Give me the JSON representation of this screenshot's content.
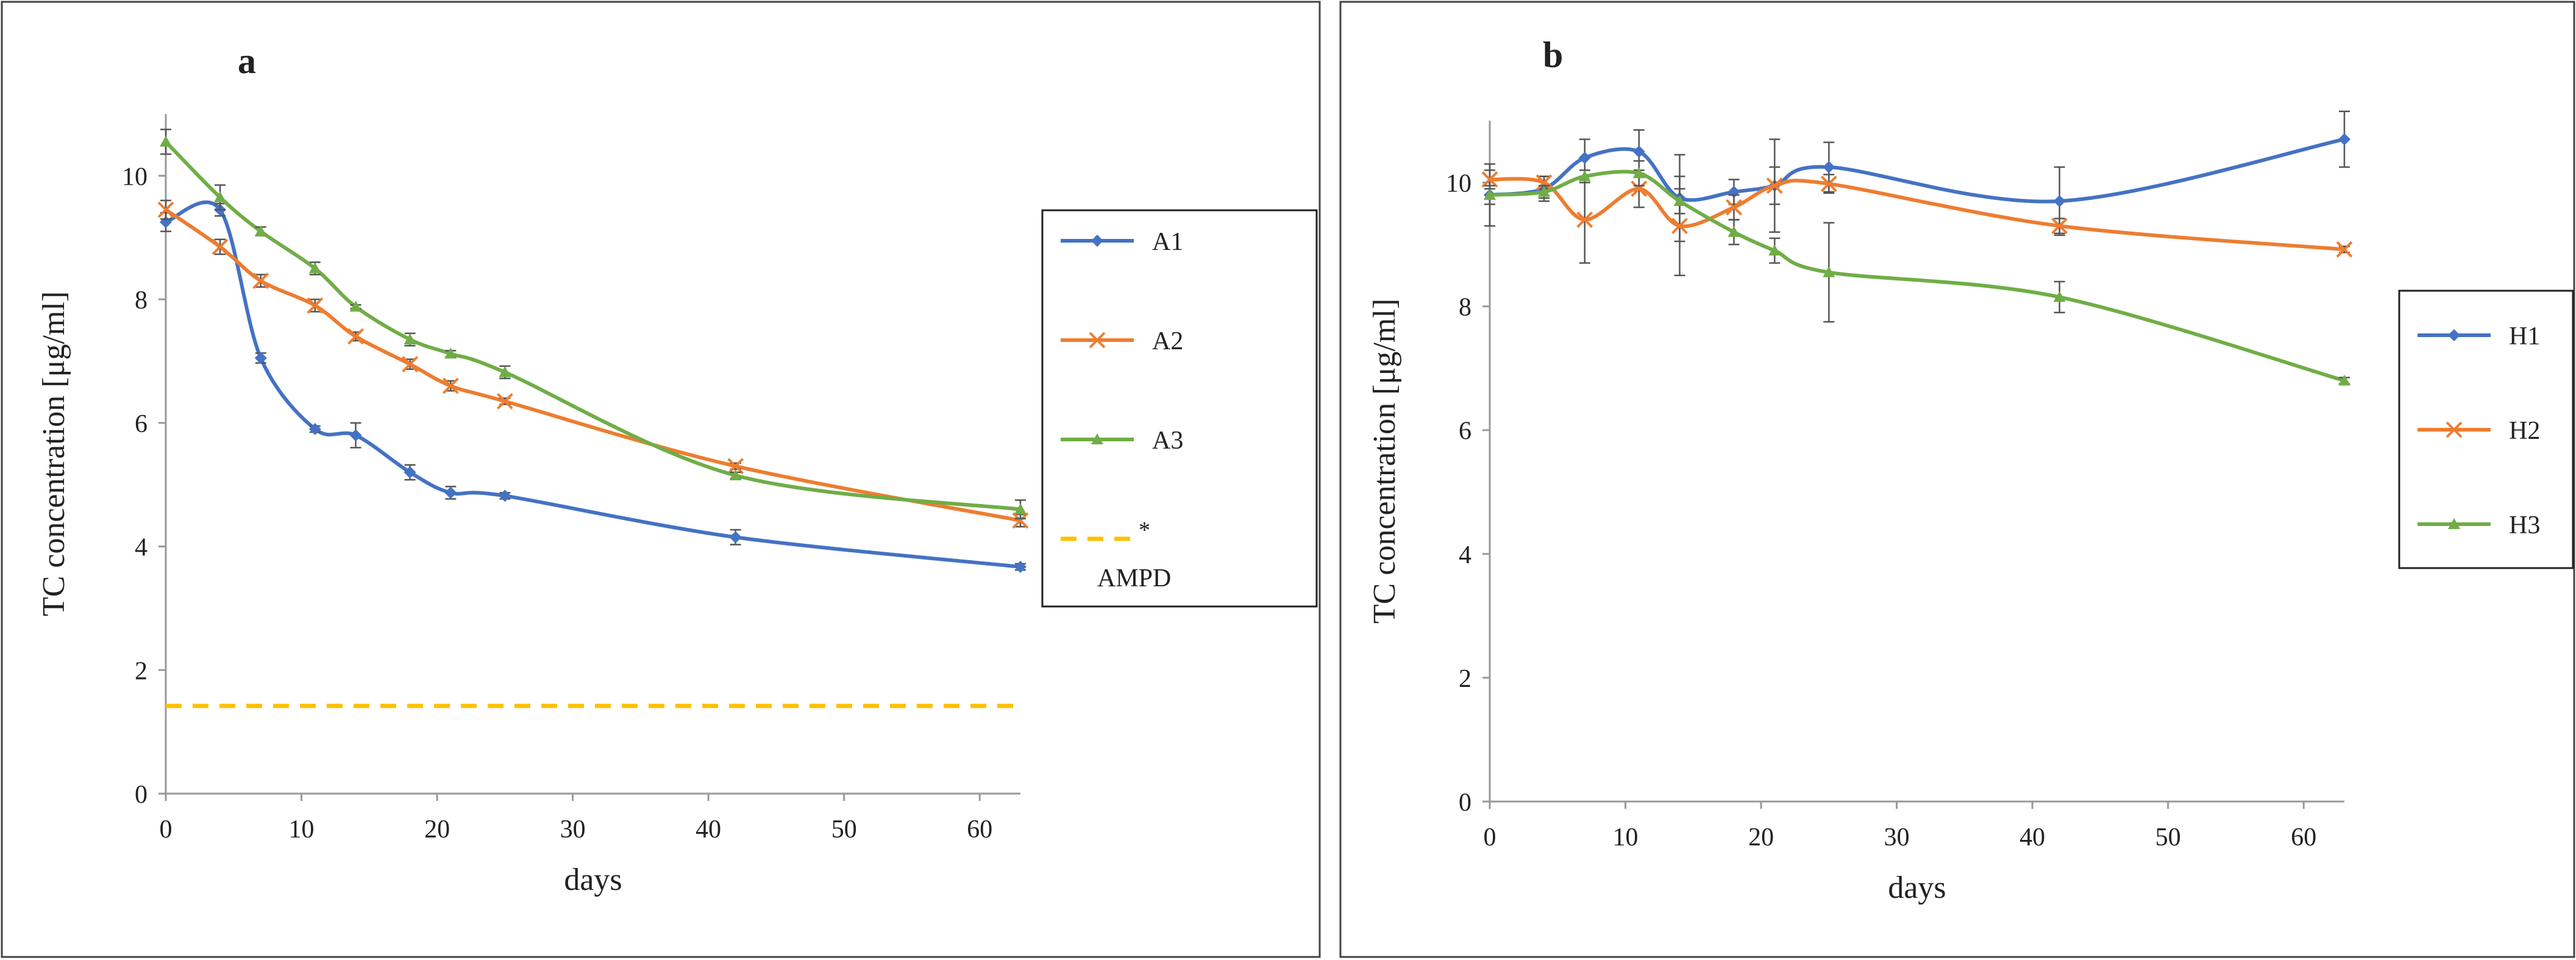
{
  "chart_data": [
    {
      "type": "line",
      "panel_label": "a",
      "title": "",
      "xlabel": "days",
      "ylabel": "TC concentration [μg/ml]",
      "xlim": [
        0,
        63
      ],
      "ylim": [
        0,
        11
      ],
      "xticks": [
        0,
        10,
        20,
        30,
        40,
        50,
        60
      ],
      "yticks": [
        0,
        2,
        4,
        6,
        8,
        10
      ],
      "grid": false,
      "legend": "right",
      "series": [
        {
          "name": "A1",
          "color": "#4472C4",
          "marker": "diamond",
          "x": [
            0,
            4,
            7,
            11,
            14,
            18,
            21,
            25,
            42,
            63
          ],
          "y": [
            9.25,
            9.45,
            7.05,
            5.9,
            5.8,
            5.2,
            4.87,
            4.82,
            4.15,
            3.67
          ],
          "err": [
            0.15,
            0.1,
            0.08,
            0.05,
            0.2,
            0.12,
            0.1,
            0.05,
            0.12,
            0.05
          ]
        },
        {
          "name": "A2",
          "color": "#ED7D31",
          "marker": "x",
          "x": [
            0,
            4,
            7,
            11,
            14,
            18,
            21,
            25,
            42,
            63
          ],
          "y": [
            9.45,
            8.85,
            8.3,
            7.9,
            7.4,
            6.95,
            6.6,
            6.35,
            5.3,
            4.42
          ],
          "err": [
            0.15,
            0.12,
            0.1,
            0.1,
            0.07,
            0.08,
            0.08,
            0.05,
            0.05,
            0.1
          ]
        },
        {
          "name": "A3",
          "color": "#70AD47",
          "marker": "triangle",
          "x": [
            0,
            4,
            7,
            11,
            14,
            18,
            21,
            25,
            42,
            63
          ],
          "y": [
            10.55,
            9.65,
            9.1,
            8.5,
            7.88,
            7.35,
            7.12,
            6.82,
            5.15,
            4.6
          ],
          "err": [
            0.2,
            0.2,
            0.07,
            0.1,
            0.03,
            0.1,
            0.05,
            0.1,
            0.05,
            0.15
          ]
        },
        {
          "name": "* AMPD",
          "color": "#FFC000",
          "dashed": true,
          "x": [
            0,
            63
          ],
          "y": [
            1.42,
            1.42
          ]
        }
      ]
    },
    {
      "type": "line",
      "panel_label": "b",
      "title": "",
      "xlabel": "days",
      "ylabel": "TC concentration [μg/ml]",
      "xlim": [
        0,
        63
      ],
      "ylim": [
        0,
        11
      ],
      "xticks": [
        0,
        10,
        20,
        30,
        40,
        50,
        60
      ],
      "yticks": [
        0,
        2,
        4,
        6,
        8,
        10
      ],
      "grid": false,
      "legend": "right",
      "series": [
        {
          "name": "H1",
          "color": "#4472C4",
          "marker": "diamond",
          "x": [
            0,
            4,
            7,
            11,
            14,
            18,
            21,
            25,
            42,
            63
          ],
          "y": [
            9.8,
            9.9,
            10.4,
            10.5,
            9.75,
            9.85,
            9.95,
            10.25,
            9.7,
            10.7
          ],
          "err": [
            0.5,
            0.2,
            0.3,
            0.35,
            0.7,
            0.2,
            0.75,
            0.4,
            0.55,
            0.45
          ]
        },
        {
          "name": "H2",
          "color": "#ED7D31",
          "marker": "x",
          "x": [
            0,
            4,
            7,
            11,
            14,
            18,
            21,
            25,
            42,
            63
          ],
          "y": [
            10.05,
            10.0,
            9.4,
            9.9,
            9.3,
            9.6,
            9.95,
            9.98,
            9.3,
            8.92
          ],
          "err": [
            0.15,
            0.1,
            0.7,
            0.3,
            0.8,
            0.2,
            0.3,
            0.15,
            0.12,
            0.05
          ]
        },
        {
          "name": "H3",
          "color": "#70AD47",
          "marker": "triangle",
          "x": [
            0,
            4,
            7,
            11,
            14,
            18,
            21,
            25,
            42,
            63
          ],
          "y": [
            9.8,
            9.85,
            10.1,
            10.15,
            9.7,
            9.2,
            8.9,
            8.55,
            8.15,
            6.8
          ],
          "err": [
            0.15,
            0.1,
            0.1,
            0.2,
            0.2,
            0.2,
            0.2,
            0.8,
            0.25,
            0.05
          ]
        }
      ]
    }
  ]
}
